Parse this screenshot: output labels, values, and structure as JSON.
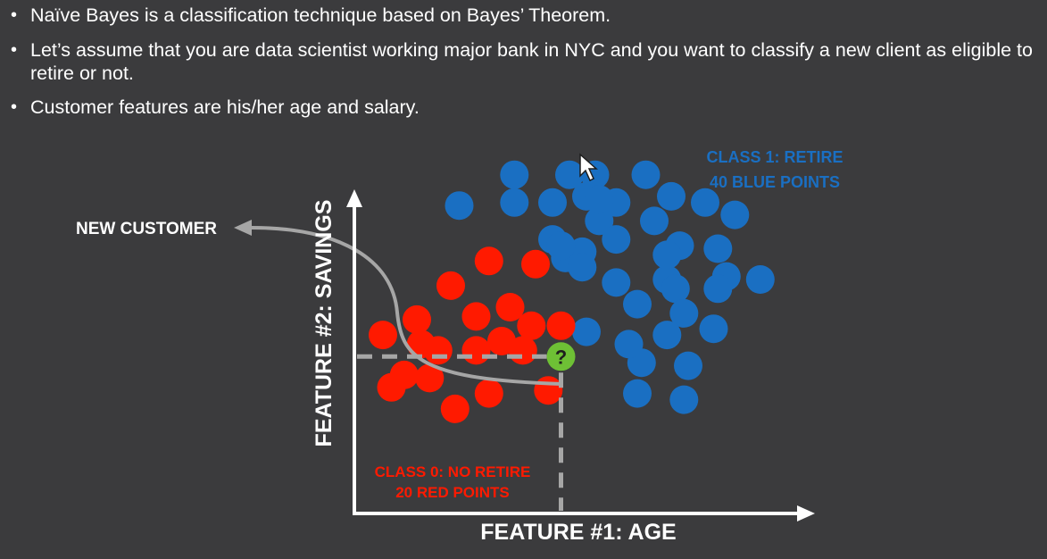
{
  "bullets": [
    "Naïve Bayes is a classification technique based on Bayes’ Theorem.",
    "Let’s assume that you are data scientist working major bank in NYC and you want to classify a new client as eligible to retire or not.",
    "Customer features are his/her age and salary."
  ],
  "colors": {
    "background": "#3b3b3d",
    "class0": "#ff1a00",
    "class1": "#1a6fc2",
    "new_point": "#6ec035",
    "axis": "#ffffff",
    "guide": "#a6a6a6"
  },
  "icons": {
    "cursor": "mouse-pointer-icon"
  },
  "chart_data": {
    "type": "scatter",
    "xlabel": "FEATURE #1: AGE",
    "ylabel": "FEATURE #2: SAVINGS",
    "xlim": [
      0,
      10
    ],
    "ylim": [
      0,
      10
    ],
    "grid": false,
    "annotations": {
      "class1": [
        "CLASS 1: RETIRE",
        "40 BLUE POINTS"
      ],
      "class0": [
        "CLASS 0: NO RETIRE",
        "20 RED POINTS"
      ],
      "new_customer": "NEW CUSTOMER",
      "new_point_label": "?"
    },
    "series": [
      {
        "name": "CLASS 1: RETIRE",
        "points": [
          [
            3.5,
            9.4
          ],
          [
            4.8,
            9.4
          ],
          [
            5.4,
            9.4
          ],
          [
            6.6,
            9.4
          ],
          [
            2.2,
            8.4
          ],
          [
            3.5,
            8.5
          ],
          [
            4.4,
            8.5
          ],
          [
            5.2,
            8.7
          ],
          [
            5.9,
            8.5
          ],
          [
            7.2,
            8.7
          ],
          [
            8.0,
            8.5
          ],
          [
            8.7,
            8.1
          ],
          [
            5.5,
            7.9
          ],
          [
            6.8,
            7.9
          ],
          [
            4.4,
            7.3
          ],
          [
            5.9,
            7.3
          ],
          [
            7.4,
            7.1
          ],
          [
            8.3,
            7.0
          ],
          [
            4.7,
            6.7
          ],
          [
            5.1,
            6.9
          ],
          [
            5.1,
            6.4
          ],
          [
            5.9,
            5.9
          ],
          [
            7.1,
            6.0
          ],
          [
            8.5,
            6.1
          ],
          [
            9.3,
            6.0
          ],
          [
            6.4,
            5.2
          ],
          [
            7.3,
            5.7
          ],
          [
            7.5,
            4.9
          ],
          [
            5.2,
            4.3
          ],
          [
            7.1,
            4.2
          ],
          [
            8.2,
            4.4
          ],
          [
            6.5,
            3.3
          ],
          [
            7.6,
            3.2
          ],
          [
            6.4,
            2.3
          ],
          [
            7.5,
            2.1
          ],
          [
            6.2,
            3.9
          ],
          [
            4.6,
            7.1
          ],
          [
            5.5,
            8.6
          ],
          [
            7.1,
            6.8
          ],
          [
            8.3,
            5.7
          ]
        ]
      },
      {
        "name": "CLASS 0: NO RETIRE",
        "points": [
          [
            2.9,
            6.6
          ],
          [
            4.0,
            6.5
          ],
          [
            2.0,
            5.8
          ],
          [
            2.6,
            4.8
          ],
          [
            3.4,
            5.1
          ],
          [
            1.2,
            4.7
          ],
          [
            0.4,
            4.2
          ],
          [
            1.7,
            3.7
          ],
          [
            2.6,
            3.7
          ],
          [
            3.9,
            4.5
          ],
          [
            4.6,
            4.5
          ],
          [
            3.7,
            3.7
          ],
          [
            0.6,
            2.5
          ],
          [
            1.5,
            2.8
          ],
          [
            2.9,
            2.3
          ],
          [
            4.3,
            2.4
          ],
          [
            2.1,
            1.8
          ],
          [
            0.9,
            2.9
          ],
          [
            3.2,
            4.0
          ],
          [
            1.3,
            3.9
          ]
        ]
      },
      {
        "name": "NEW CUSTOMER",
        "points": [
          [
            4.6,
            3.5
          ]
        ]
      }
    ]
  }
}
